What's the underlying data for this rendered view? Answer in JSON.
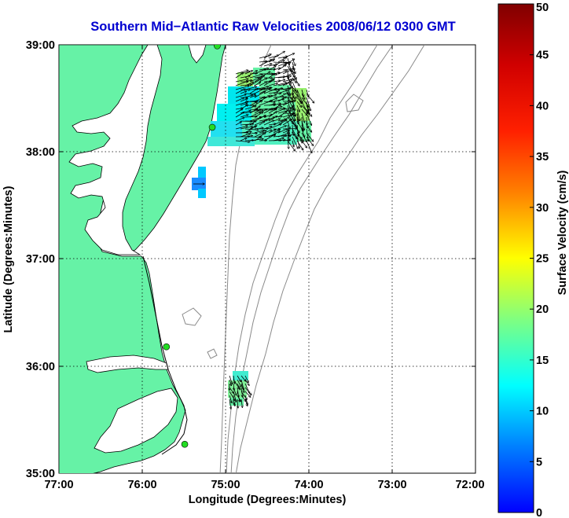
{
  "title": "Southern Mid−Atlantic Raw Velocities 2008/06/12 0300 GMT",
  "map": {
    "xlabel": "Longitude (Degrees:Minutes)",
    "ylabel": "Latitude (Degrees:Minutes)",
    "lon_range": [
      -77,
      -72
    ],
    "lat_range": [
      35,
      39
    ],
    "lon_ticks": [
      "77:00",
      "76:00",
      "75:00",
      "74:00",
      "73:00",
      "72:00"
    ],
    "lat_ticks": [
      "35:00",
      "36:00",
      "37:00",
      "38:00",
      "39:00"
    ],
    "colors": {
      "land": "#66f2a6",
      "water": "#ffffff",
      "coast": "#000000",
      "bathymetry": "#8a8a8a",
      "station": "#22dd22",
      "arrows": "#000000"
    }
  },
  "colorbar": {
    "label": "Surface Velocity (cm/s)",
    "min": 0,
    "max": 50,
    "ticks": [
      "0",
      "5",
      "10",
      "15",
      "20",
      "25",
      "30",
      "35",
      "40",
      "45",
      "50"
    ]
  },
  "stations": [
    {
      "lon": -75.1,
      "lat": 38.99
    },
    {
      "lon": -75.16,
      "lat": 38.23
    },
    {
      "lon": -75.71,
      "lat": 36.18
    },
    {
      "lon": -75.49,
      "lat": 35.27
    }
  ]
}
